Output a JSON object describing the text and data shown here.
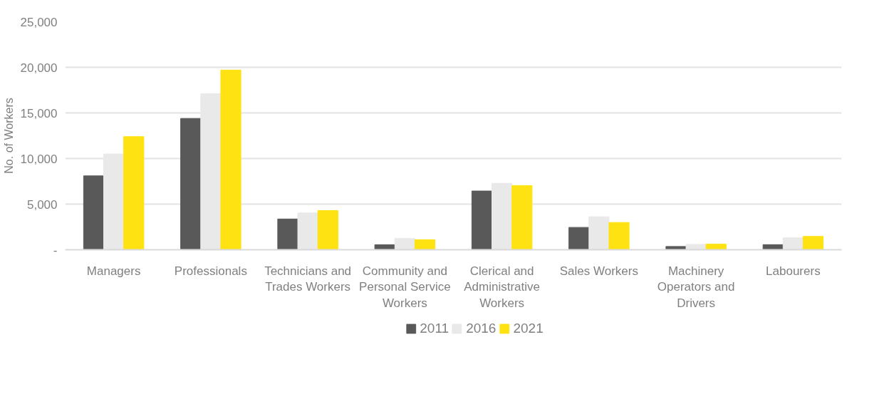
{
  "chart_data": {
    "type": "bar",
    "ylabel": "No. of Workers",
    "categories": [
      "Managers",
      "Professionals",
      "Technicians and Trades Workers",
      "Community and Personal Service Workers",
      "Clerical and Administrative Workers",
      "Sales Workers",
      "Machinery Operators and Drivers",
      "Labourers"
    ],
    "series": [
      {
        "name": "2011",
        "color": "#595959",
        "values": [
          8100,
          14400,
          3370,
          550,
          6440,
          2450,
          360,
          560
        ]
      },
      {
        "name": "2016",
        "color": "#e9e9e9",
        "values": [
          10500,
          17100,
          4040,
          1230,
          7280,
          3620,
          580,
          1310
        ]
      },
      {
        "name": "2021",
        "color": "#ffe211",
        "values": [
          12400,
          19700,
          4300,
          1100,
          7040,
          2990,
          610,
          1460
        ]
      }
    ],
    "ylim": [
      0,
      25000
    ],
    "yticks": [
      {
        "value": 0,
        "label": "-"
      },
      {
        "value": 5000,
        "label": "5,000"
      },
      {
        "value": 10000,
        "label": "10,000"
      },
      {
        "value": 15000,
        "label": "15,000"
      },
      {
        "value": 20000,
        "label": "20,000"
      },
      {
        "value": 25000,
        "label": "25,000"
      }
    ],
    "grid": "y",
    "legend": "bottom"
  }
}
